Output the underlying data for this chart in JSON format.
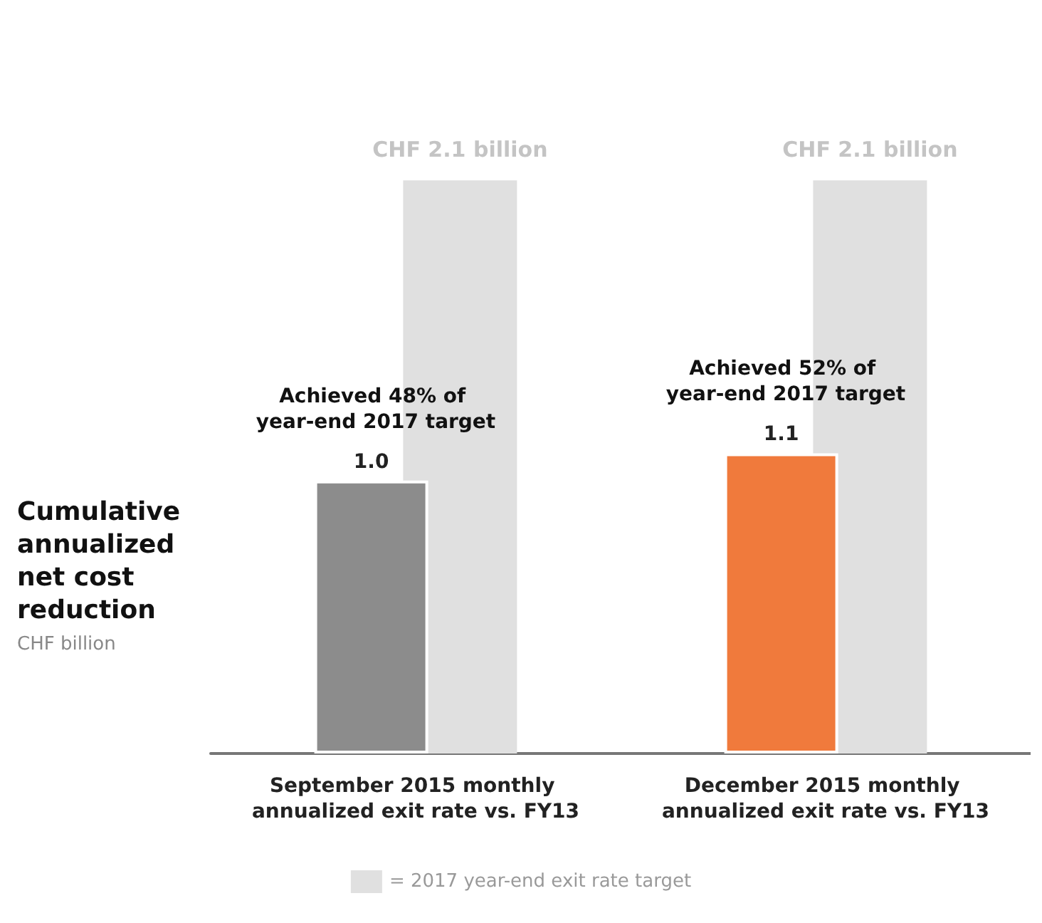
{
  "chart_data": {
    "type": "bar",
    "ylabel": "Cumulative annualized net cost reduction",
    "categories": [
      "September 2015 monthly annualized exit rate vs. FY13",
      "December 2015 monthly annualized exit rate vs. FY13"
    ],
    "series": [
      {
        "colors": [
          "#8c8c8c",
          "#f07a3c"
        ],
        "values": [
          1.0,
          1.1
        ],
        "value_labels": [
          "1.0",
          "1.1"
        ]
      },
      {
        "name": "= 2017 year-end exit rate target",
        "color": "#e0e0e0",
        "values": [
          2.1,
          2.1
        ],
        "value_labels": [
          "CHF 2.1 billion",
          "CHF 2.1 billion"
        ]
      }
    ],
    "annotations": [
      "CHF billion",
      {
        "text": "Achieved 48% of year-end 2017 target",
        "x": "September 2015 monthly annualized exit rate vs. FY13",
        "y": 1.0
      },
      {
        "text": "Achieved 52% of year-end 2017 target",
        "x": "December 2015 monthly annualized exit rate vs. FY13",
        "y": 1.1
      }
    ],
    "legend": "bottom"
  }
}
